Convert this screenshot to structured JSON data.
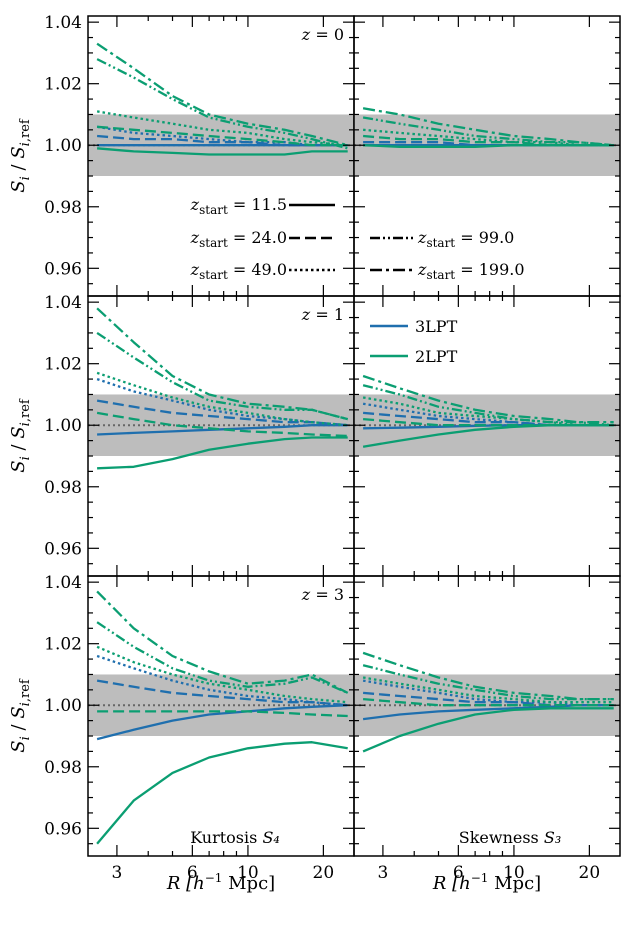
{
  "colors": {
    "3LPT": "#1f6fae",
    "2LPT": "#0b9e72",
    "band": "#bdbdbd",
    "ref": "#666666"
  },
  "labels": {
    "ylabel": "S_i / S_{i,ref}",
    "xlabel": "R [h^{-1} Mpc]",
    "x_unit_prefix": "R",
    "x_unit": "h",
    "x_exp": "−1",
    "x_mpc": "Mpc"
  },
  "linestyle_legend": [
    {
      "label": "z_start = 11.5",
      "z": "11.5",
      "style": "solid"
    },
    {
      "label": "z_start = 24.0",
      "z": "24.0",
      "style": "dashed"
    },
    {
      "label": "z_start = 49.0",
      "z": "49.0",
      "style": "dotted"
    },
    {
      "label": "z_start = 99.0",
      "z": "99.0",
      "style": "dashdotdot"
    },
    {
      "label": "z_start = 199.0",
      "z": "199.0",
      "style": "dashdot"
    }
  ],
  "color_legend": [
    {
      "label": "3LPT",
      "key": "3LPT"
    },
    {
      "label": "2LPT",
      "key": "2LPT"
    }
  ],
  "chart_data": {
    "type": "line",
    "xscale": "log",
    "xlim": [
      2.3,
      26.5
    ],
    "ylim": [
      0.951,
      1.042
    ],
    "x_ticks": [
      3,
      6,
      10,
      20
    ],
    "x_tick_labels": [
      "3",
      "6",
      "10",
      "20"
    ],
    "y_ticks": [
      0.96,
      0.98,
      1.0,
      1.02,
      1.04
    ],
    "y_tick_labels": [
      "0.96",
      "0.98",
      "1.00",
      "1.02",
      "1.04"
    ],
    "band": [
      0.99,
      1.01
    ],
    "reference_line": 1.0,
    "x": [
      2.5,
      3.5,
      5,
      7,
      10,
      14,
      18,
      25
    ],
    "rows": [
      {
        "redshift_label": "z = 0"
      },
      {
        "redshift_label": "z = 1"
      },
      {
        "redshift_label": "z = 3"
      }
    ],
    "columns": [
      {
        "stat_label": "Kurtosis S₄"
      },
      {
        "stat_label": "Skewness S₃"
      }
    ],
    "panels": [
      {
        "row": 0,
        "col": 0,
        "series": [
          {
            "lpt": "3LPT",
            "style": "solid",
            "y": [
              1.0,
              1.0,
              1.0,
              1.0,
              1.0,
              1.0,
              1.0,
              1.0
            ]
          },
          {
            "lpt": "3LPT",
            "style": "dashed",
            "y": [
              1.003,
              1.002,
              1.002,
              1.001,
              1.001,
              1.0,
              1.0,
              1.0
            ]
          },
          {
            "lpt": "3LPT",
            "style": "dotted",
            "y": [
              1.006,
              1.004,
              1.003,
              1.002,
              1.001,
              1.001,
              1.0,
              1.0
            ]
          },
          {
            "lpt": "2LPT",
            "style": "solid",
            "y": [
              0.999,
              0.998,
              0.9975,
              0.997,
              0.997,
              0.997,
              0.998,
              0.998
            ]
          },
          {
            "lpt": "2LPT",
            "style": "dashed",
            "y": [
              1.006,
              1.005,
              1.004,
              1.003,
              1.002,
              1.001,
              1.0,
              1.0
            ]
          },
          {
            "lpt": "2LPT",
            "style": "dotted",
            "y": [
              1.011,
              1.009,
              1.007,
              1.005,
              1.004,
              1.002,
              1.001,
              1.0
            ]
          },
          {
            "lpt": "2LPT",
            "style": "dashdotdot",
            "y": [
              1.028,
              1.022,
              1.015,
              1.009,
              1.006,
              1.004,
              1.002,
              0.999
            ]
          },
          {
            "lpt": "2LPT",
            "style": "dashdot",
            "y": [
              1.033,
              1.025,
              1.016,
              1.01,
              1.007,
              1.005,
              1.003,
              1.0
            ]
          }
        ]
      },
      {
        "row": 0,
        "col": 1,
        "series": [
          {
            "lpt": "3LPT",
            "style": "solid",
            "y": [
              1.0,
              1.0,
              1.0,
              1.0,
              1.0,
              1.0,
              1.0,
              1.0
            ]
          },
          {
            "lpt": "3LPT",
            "style": "dashed",
            "y": [
              1.001,
              1.001,
              1.001,
              1.0,
              1.0,
              1.0,
              1.0,
              1.0
            ]
          },
          {
            "lpt": "2LPT",
            "style": "solid",
            "y": [
              1.0,
              0.9995,
              0.9995,
              0.9995,
              1.0,
              1.0,
              1.0,
              1.0
            ]
          },
          {
            "lpt": "2LPT",
            "style": "dashed",
            "y": [
              1.003,
              1.002,
              1.002,
              1.001,
              1.001,
              1.0,
              1.0,
              1.0
            ]
          },
          {
            "lpt": "2LPT",
            "style": "dotted",
            "y": [
              1.005,
              1.004,
              1.003,
              1.002,
              1.001,
              1.001,
              1.0,
              1.0
            ]
          },
          {
            "lpt": "2LPT",
            "style": "dashdotdot",
            "y": [
              1.009,
              1.007,
              1.005,
              1.003,
              1.002,
              1.001,
              1.001,
              1.0
            ]
          },
          {
            "lpt": "2LPT",
            "style": "dashdot",
            "y": [
              1.012,
              1.01,
              1.007,
              1.005,
              1.003,
              1.002,
              1.001,
              1.0
            ]
          }
        ]
      },
      {
        "row": 1,
        "col": 0,
        "series": [
          {
            "lpt": "3LPT",
            "style": "solid",
            "y": [
              0.997,
              0.9975,
              0.998,
              0.9985,
              0.999,
              0.9995,
              1.0,
              1.0
            ]
          },
          {
            "lpt": "3LPT",
            "style": "dashed",
            "y": [
              1.008,
              1.006,
              1.004,
              1.003,
              1.002,
              1.001,
              1.001,
              1.0
            ]
          },
          {
            "lpt": "3LPT",
            "style": "dotted",
            "y": [
              1.015,
              1.011,
              1.008,
              1.005,
              1.003,
              1.002,
              1.001,
              1.0
            ]
          },
          {
            "lpt": "2LPT",
            "style": "solid",
            "y": [
              0.986,
              0.9865,
              0.989,
              0.992,
              0.994,
              0.9955,
              0.996,
              0.996
            ]
          },
          {
            "lpt": "2LPT",
            "style": "dashed",
            "y": [
              1.004,
              1.002,
              1.0,
              0.999,
              0.998,
              0.9975,
              0.997,
              0.9965
            ]
          },
          {
            "lpt": "2LPT",
            "style": "dotted",
            "y": [
              1.017,
              1.013,
              1.009,
              1.006,
              1.004,
              1.002,
              1.001,
              1.0
            ]
          },
          {
            "lpt": "2LPT",
            "style": "dashdotdot",
            "y": [
              1.03,
              1.022,
              1.014,
              1.008,
              1.006,
              1.005,
              1.005,
              1.002
            ]
          },
          {
            "lpt": "2LPT",
            "style": "dashdot",
            "y": [
              1.038,
              1.027,
              1.016,
              1.01,
              1.007,
              1.006,
              1.005,
              1.002
            ]
          }
        ]
      },
      {
        "row": 1,
        "col": 1,
        "series": [
          {
            "lpt": "3LPT",
            "style": "solid",
            "y": [
              0.999,
              0.9992,
              0.9995,
              0.9998,
              1.0,
              1.0,
              1.0,
              1.0
            ]
          },
          {
            "lpt": "3LPT",
            "style": "dashed",
            "y": [
              1.004,
              1.003,
              1.002,
              1.001,
              1.001,
              1.0,
              1.0,
              1.0
            ]
          },
          {
            "lpt": "3LPT",
            "style": "dotted",
            "y": [
              1.007,
              1.005,
              1.003,
              1.002,
              1.001,
              1.0,
              1.0,
              1.0
            ]
          },
          {
            "lpt": "2LPT",
            "style": "solid",
            "y": [
              0.993,
              0.995,
              0.997,
              0.9985,
              0.9995,
              1.0,
              1.0,
              1.0
            ]
          },
          {
            "lpt": "2LPT",
            "style": "dashed",
            "y": [
              1.002,
              1.001,
              1.0,
              1.0,
              1.0,
              1.0,
              1.0,
              1.0
            ]
          },
          {
            "lpt": "2LPT",
            "style": "dotted",
            "y": [
              1.009,
              1.007,
              1.004,
              1.003,
              1.002,
              1.001,
              1.0,
              1.0
            ]
          },
          {
            "lpt": "2LPT",
            "style": "dashdotdot",
            "y": [
              1.013,
              1.01,
              1.006,
              1.004,
              1.002,
              1.001,
              1.001,
              1.0
            ]
          },
          {
            "lpt": "2LPT",
            "style": "dashdot",
            "y": [
              1.016,
              1.012,
              1.008,
              1.005,
              1.003,
              1.002,
              1.001,
              1.001
            ]
          }
        ]
      },
      {
        "row": 2,
        "col": 0,
        "series": [
          {
            "lpt": "3LPT",
            "style": "solid",
            "y": [
              0.989,
              0.992,
              0.995,
              0.997,
              0.998,
              0.999,
              0.9995,
              1.0
            ]
          },
          {
            "lpt": "3LPT",
            "style": "dashed",
            "y": [
              1.008,
              1.006,
              1.004,
              1.003,
              1.002,
              1.001,
              1.001,
              1.0
            ]
          },
          {
            "lpt": "3LPT",
            "style": "dotted",
            "y": [
              1.016,
              1.012,
              1.008,
              1.005,
              1.003,
              1.002,
              1.001,
              1.0
            ]
          },
          {
            "lpt": "2LPT",
            "style": "solid",
            "y": [
              0.955,
              0.969,
              0.978,
              0.983,
              0.986,
              0.9875,
              0.988,
              0.986
            ]
          },
          {
            "lpt": "2LPT",
            "style": "dashed",
            "y": [
              0.998,
              0.998,
              0.998,
              0.998,
              0.998,
              0.9975,
              0.997,
              0.9965
            ]
          },
          {
            "lpt": "2LPT",
            "style": "dotted",
            "y": [
              1.019,
              1.014,
              1.01,
              1.007,
              1.005,
              1.003,
              1.002,
              1.001
            ]
          },
          {
            "lpt": "2LPT",
            "style": "dashdotdot",
            "y": [
              1.027,
              1.019,
              1.012,
              1.008,
              1.006,
              1.007,
              1.009,
              1.004
            ]
          },
          {
            "lpt": "2LPT",
            "style": "dashdot",
            "y": [
              1.037,
              1.025,
              1.016,
              1.011,
              1.007,
              1.008,
              1.01,
              1.004
            ]
          }
        ]
      },
      {
        "row": 2,
        "col": 1,
        "series": [
          {
            "lpt": "3LPT",
            "style": "solid",
            "y": [
              0.9955,
              0.997,
              0.998,
              0.9985,
              0.999,
              0.9995,
              1.0,
              1.0
            ]
          },
          {
            "lpt": "3LPT",
            "style": "dashed",
            "y": [
              1.004,
              1.003,
              1.002,
              1.001,
              1.001,
              1.0,
              1.0,
              1.0
            ]
          },
          {
            "lpt": "3LPT",
            "style": "dotted",
            "y": [
              1.008,
              1.006,
              1.004,
              1.002,
              1.001,
              1.001,
              1.0,
              1.0
            ]
          },
          {
            "lpt": "2LPT",
            "style": "solid",
            "y": [
              0.985,
              0.99,
              0.994,
              0.997,
              0.9985,
              0.999,
              0.999,
              0.999
            ]
          },
          {
            "lpt": "2LPT",
            "style": "dashed",
            "y": [
              1.002,
              1.001,
              1.0,
              1.0,
              1.0,
              1.0,
              1.0,
              1.0
            ]
          },
          {
            "lpt": "2LPT",
            "style": "dotted",
            "y": [
              1.009,
              1.007,
              1.005,
              1.003,
              1.002,
              1.001,
              1.001,
              1.001
            ]
          },
          {
            "lpt": "2LPT",
            "style": "dashdotdot",
            "y": [
              1.013,
              1.01,
              1.007,
              1.005,
              1.003,
              1.002,
              1.002,
              1.002
            ]
          },
          {
            "lpt": "2LPT",
            "style": "dashdot",
            "y": [
              1.017,
              1.013,
              1.009,
              1.006,
              1.004,
              1.003,
              1.002,
              1.002
            ]
          }
        ]
      }
    ]
  }
}
